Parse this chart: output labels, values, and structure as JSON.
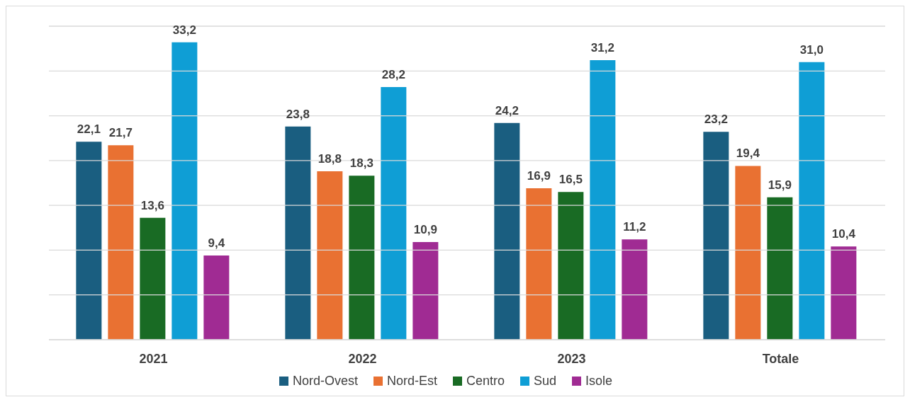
{
  "chart_data": {
    "type": "bar",
    "categories": [
      "2021",
      "2022",
      "2023",
      "Totale"
    ],
    "series": [
      {
        "name": "Nord-Ovest",
        "color": "#1a5e80",
        "values": [
          22.1,
          23.8,
          24.2,
          23.2
        ],
        "value_labels": [
          "22,1",
          "23,8",
          "24,2",
          "23,2"
        ]
      },
      {
        "name": "Nord-Est",
        "color": "#e97132",
        "values": [
          21.7,
          18.8,
          16.9,
          19.4
        ],
        "value_labels": [
          "21,7",
          "18,8",
          "16,9",
          "19,4"
        ]
      },
      {
        "name": "Centro",
        "color": "#196b24",
        "values": [
          13.6,
          18.3,
          16.5,
          15.9
        ],
        "value_labels": [
          "13,6",
          "18,3",
          "16,5",
          "15,9"
        ]
      },
      {
        "name": "Sud",
        "color": "#0f9ed5",
        "values": [
          33.2,
          28.2,
          31.2,
          31.0
        ],
        "value_labels": [
          "33,2",
          "28,2",
          "31,2",
          "31,0"
        ]
      },
      {
        "name": "Isole",
        "color": "#a02b93",
        "values": [
          9.4,
          10.9,
          11.2,
          10.4
        ],
        "value_labels": [
          "9,4",
          "10,9",
          "11,2",
          "10,4"
        ]
      }
    ],
    "ylim": [
      0,
      35
    ],
    "yticks": [
      {
        "value": 0,
        "label": null
      },
      {
        "value": 5,
        "label": null
      },
      {
        "value": 10,
        "label": null
      },
      {
        "value": 15,
        "label": null
      },
      {
        "value": 20,
        "label": null
      },
      {
        "value": 25,
        "label": null
      },
      {
        "value": 30,
        "label": null
      },
      {
        "value": 35,
        "label": null
      }
    ],
    "tick_labels": "x",
    "grid": "y",
    "legend": "bottom"
  }
}
